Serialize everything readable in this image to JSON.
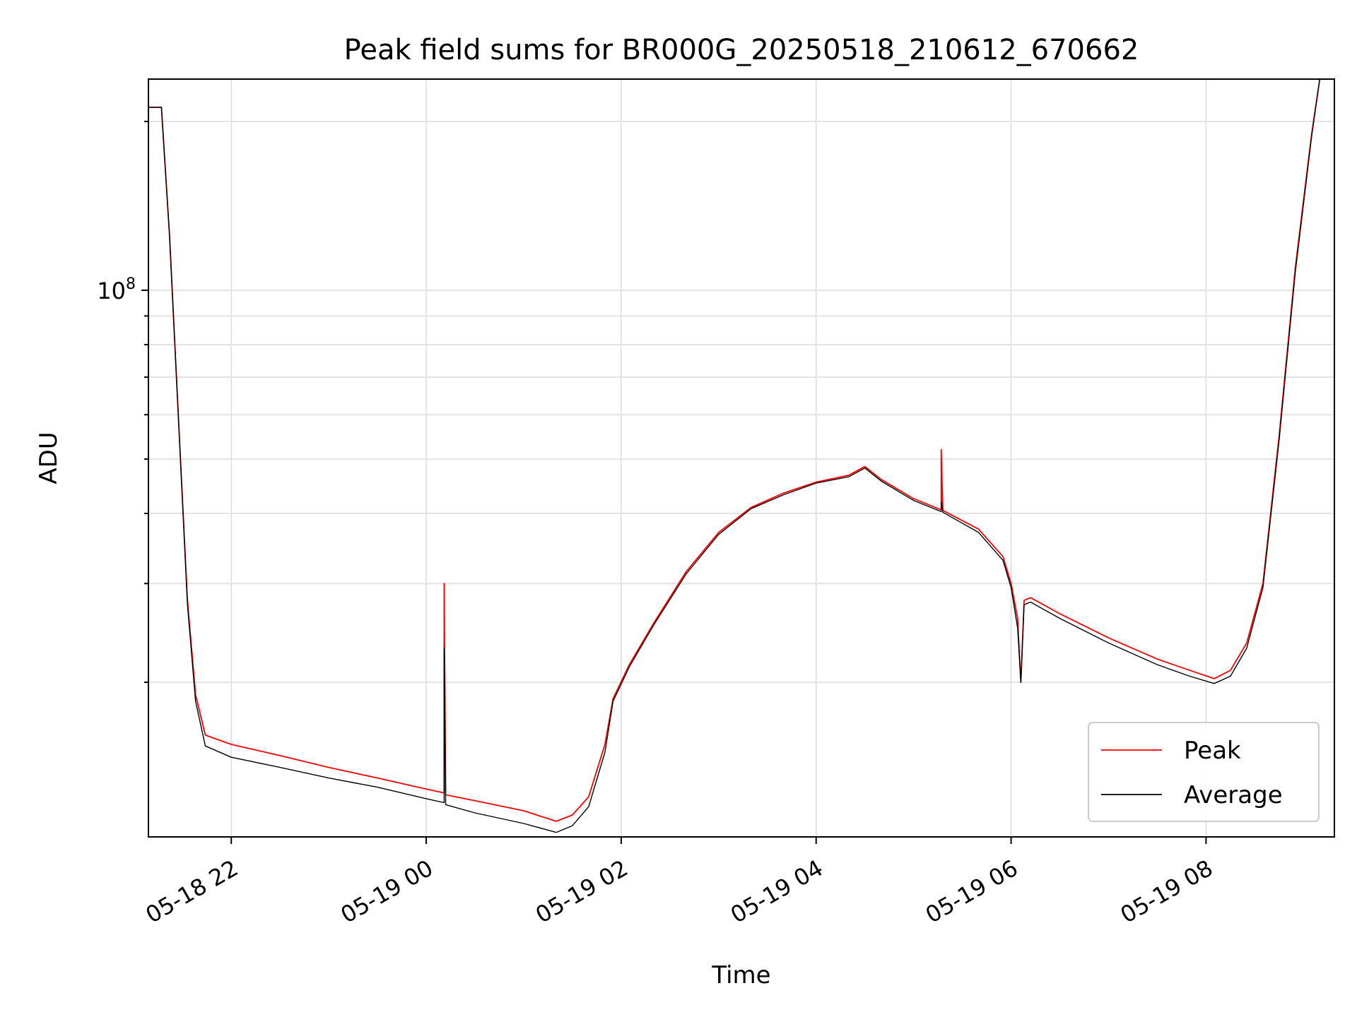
{
  "chart_data": {
    "type": "line",
    "title": "Peak field sums for BR000G_20250518_210612_670662",
    "xlabel": "Time",
    "ylabel": "ADU",
    "x_ticks": [
      "05-18 22",
      "05-19 00",
      "05-19 02",
      "05-19 04",
      "05-19 06",
      "05-19 08"
    ],
    "y_ticks": [
      {
        "base": "10",
        "exp": "8",
        "value": 100000000
      }
    ],
    "y_scale": "log",
    "xlim": [
      "05-18 21:09",
      "05-19 09:19"
    ],
    "ylim": [
      10600000,
      238000000
    ],
    "grid": true,
    "legend_position": "lower right",
    "series": [
      {
        "name": "Peak",
        "color": "#ff0000",
        "points": [
          [
            "05-18 21:09",
            212000000
          ],
          [
            "05-18 21:17",
            212000000
          ],
          [
            "05-18 21:22",
            125000000
          ],
          [
            "05-18 21:28",
            55000000
          ],
          [
            "05-18 21:33",
            28000000
          ],
          [
            "05-18 21:38",
            19000000
          ],
          [
            "05-18 21:44",
            16100000
          ],
          [
            "05-18 22:00",
            15500000
          ],
          [
            "05-18 22:30",
            14800000
          ],
          [
            "05-18 23:00",
            14100000
          ],
          [
            "05-18 23:30",
            13500000
          ],
          [
            "05-19 00:00",
            12900000
          ],
          [
            "05-19 00:11",
            12700000
          ],
          [
            "05-19 00:11",
            30000000
          ],
          [
            "05-19 00:12",
            12600000
          ],
          [
            "05-19 00:30",
            12300000
          ],
          [
            "05-19 01:00",
            11800000
          ],
          [
            "05-19 01:20",
            11300000
          ],
          [
            "05-19 01:30",
            11600000
          ],
          [
            "05-19 01:40",
            12500000
          ],
          [
            "05-19 01:50",
            15500000
          ],
          [
            "05-19 01:55",
            18700000
          ],
          [
            "05-19 02:05",
            21500000
          ],
          [
            "05-19 02:20",
            25500000
          ],
          [
            "05-19 02:40",
            31500000
          ],
          [
            "05-19 03:00",
            37000000
          ],
          [
            "05-19 03:20",
            41000000
          ],
          [
            "05-19 03:40",
            43500000
          ],
          [
            "05-19 04:00",
            45500000
          ],
          [
            "05-19 04:20",
            46800000
          ],
          [
            "05-19 04:30",
            48500000
          ],
          [
            "05-19 04:40",
            46000000
          ],
          [
            "05-19 05:00",
            42500000
          ],
          [
            "05-19 05:17",
            40600000
          ],
          [
            "05-19 05:17",
            52000000
          ],
          [
            "05-19 05:18",
            40500000
          ],
          [
            "05-19 05:40",
            37500000
          ],
          [
            "05-19 05:55",
            33500000
          ],
          [
            "05-19 06:00",
            30000000
          ],
          [
            "05-19 06:04",
            26000000
          ],
          [
            "05-19 06:06",
            20000000
          ],
          [
            "05-19 06:08",
            28000000
          ],
          [
            "05-19 06:12",
            28300000
          ],
          [
            "05-19 06:30",
            26500000
          ],
          [
            "05-19 07:00",
            24000000
          ],
          [
            "05-19 07:30",
            22000000
          ],
          [
            "05-19 07:50",
            21000000
          ],
          [
            "05-19 08:05",
            20300000
          ],
          [
            "05-19 08:15",
            21000000
          ],
          [
            "05-19 08:25",
            23500000
          ],
          [
            "05-19 08:35",
            30000000
          ],
          [
            "05-19 08:45",
            55000000
          ],
          [
            "05-19 08:55",
            110000000
          ],
          [
            "05-19 09:05",
            190000000
          ],
          [
            "05-19 09:10",
            238000000
          ],
          [
            "05-19 09:19",
            238000000
          ]
        ]
      },
      {
        "name": "Average",
        "color": "#000000",
        "points": [
          [
            "05-18 21:09",
            212000000
          ],
          [
            "05-18 21:17",
            212000000
          ],
          [
            "05-18 21:22",
            125000000
          ],
          [
            "05-18 21:28",
            55000000
          ],
          [
            "05-18 21:33",
            27500000
          ],
          [
            "05-18 21:38",
            18500000
          ],
          [
            "05-18 21:44",
            15400000
          ],
          [
            "05-18 22:00",
            14700000
          ],
          [
            "05-18 22:30",
            14100000
          ],
          [
            "05-18 23:00",
            13500000
          ],
          [
            "05-18 23:30",
            13000000
          ],
          [
            "05-19 00:00",
            12400000
          ],
          [
            "05-19 00:11",
            12200000
          ],
          [
            "05-19 00:11",
            23000000
          ],
          [
            "05-19 00:12",
            12100000
          ],
          [
            "05-19 00:30",
            11700000
          ],
          [
            "05-19 01:00",
            11200000
          ],
          [
            "05-19 01:20",
            10800000
          ],
          [
            "05-19 01:30",
            11100000
          ],
          [
            "05-19 01:40",
            12000000
          ],
          [
            "05-19 01:50",
            15000000
          ],
          [
            "05-19 01:55",
            18500000
          ],
          [
            "05-19 02:05",
            21300000
          ],
          [
            "05-19 02:20",
            25300000
          ],
          [
            "05-19 02:40",
            31200000
          ],
          [
            "05-19 03:00",
            36700000
          ],
          [
            "05-19 03:20",
            40800000
          ],
          [
            "05-19 03:40",
            43200000
          ],
          [
            "05-19 04:00",
            45300000
          ],
          [
            "05-19 04:20",
            46500000
          ],
          [
            "05-19 04:30",
            48200000
          ],
          [
            "05-19 04:40",
            45700000
          ],
          [
            "05-19 05:00",
            42200000
          ],
          [
            "05-19 05:17",
            40300000
          ],
          [
            "05-19 05:17",
            42000000
          ],
          [
            "05-19 05:18",
            40200000
          ],
          [
            "05-19 05:40",
            37000000
          ],
          [
            "05-19 05:55",
            33000000
          ],
          [
            "05-19 06:00",
            29500000
          ],
          [
            "05-19 06:04",
            25000000
          ],
          [
            "05-19 06:06",
            20000000
          ],
          [
            "05-19 06:08",
            27500000
          ],
          [
            "05-19 06:12",
            27800000
          ],
          [
            "05-19 06:30",
            26000000
          ],
          [
            "05-19 07:00",
            23500000
          ],
          [
            "05-19 07:30",
            21500000
          ],
          [
            "05-19 07:50",
            20500000
          ],
          [
            "05-19 08:05",
            19900000
          ],
          [
            "05-19 08:15",
            20500000
          ],
          [
            "05-19 08:25",
            23000000
          ],
          [
            "05-19 08:35",
            29500000
          ],
          [
            "05-19 08:45",
            54000000
          ],
          [
            "05-19 08:55",
            108000000
          ],
          [
            "05-19 09:05",
            188000000
          ],
          [
            "05-19 09:10",
            238000000
          ],
          [
            "05-19 09:19",
            238000000
          ]
        ]
      }
    ]
  }
}
